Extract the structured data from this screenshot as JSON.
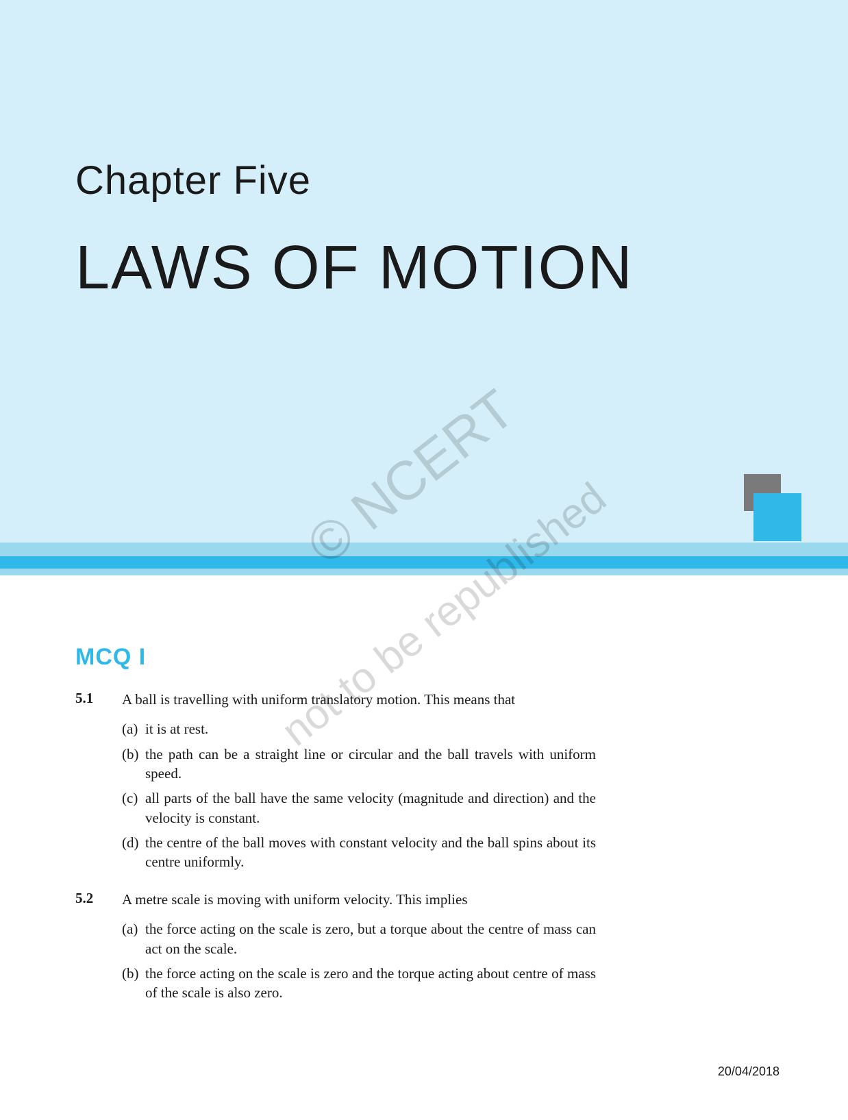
{
  "colors": {
    "header_bg": "#d5effa",
    "accent_blue": "#2fb8e8",
    "mid_light": "#9ad8ed",
    "square_gray": "#7a7a7a",
    "text": "#1a1a1a",
    "watermark": "rgba(0,0,0,0.15)"
  },
  "typography": {
    "chapter_label_size": 58,
    "chapter_title_size": 90,
    "section_heading_size": 34,
    "body_size": 21
  },
  "chapter": {
    "label": "Chapter Five",
    "title": "LAWS OF MOTION"
  },
  "section_heading": "MCQ I",
  "questions": [
    {
      "num": "5.1",
      "stem": "A ball is travelling with uniform translatory motion. This means that",
      "options": [
        {
          "label": "(a)",
          "text": "it is at rest."
        },
        {
          "label": "(b)",
          "text": "the path can be a straight line or circular and the ball travels with uniform speed."
        },
        {
          "label": "(c)",
          "text": "all parts of the ball have the same velocity (magnitude and direction) and the velocity is constant."
        },
        {
          "label": "(d)",
          "text": "the centre of the ball moves with constant velocity and the ball spins about its centre uniformly."
        }
      ]
    },
    {
      "num": "5.2",
      "stem": "A metre scale is moving with uniform velocity. This implies",
      "options": [
        {
          "label": "(a)",
          "text": "the force acting on the scale is zero, but a torque about the centre of mass can act on the scale."
        },
        {
          "label": "(b)",
          "text": "the force acting on the scale is zero and the torque acting about centre of  mass of the scale is also zero."
        }
      ]
    }
  ],
  "watermarks": {
    "w1": "© NCERT",
    "w2": "not to be republished"
  },
  "footer_date": "20/04/2018"
}
